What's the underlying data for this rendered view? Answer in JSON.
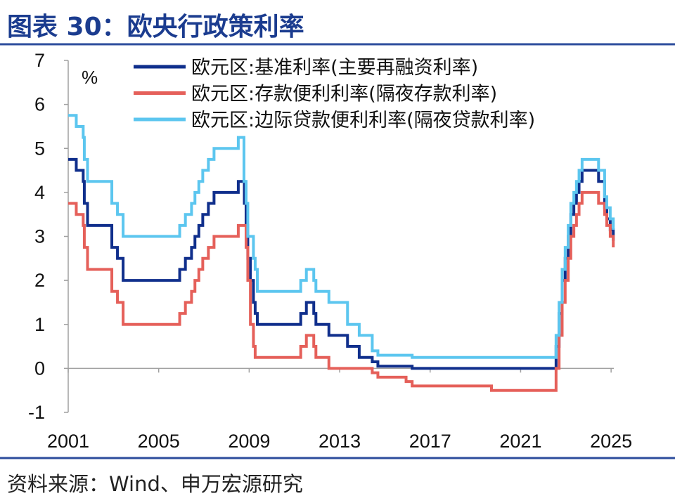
{
  "chart_data": {
    "type": "line",
    "step": true,
    "title": "图表 30：欧央行政策利率",
    "xlabel": "",
    "ylabel": "%",
    "ylim": [
      -1,
      7
    ],
    "y_ticks": [
      -1,
      0,
      1,
      2,
      3,
      4,
      5,
      6,
      7
    ],
    "xlim": [
      "2001-01-01",
      "2025-02-14"
    ],
    "x_ticks": [
      "2001",
      "2005",
      "2009",
      "2013",
      "2017",
      "2021",
      "2025"
    ],
    "grid": false,
    "legend_position": "top",
    "series": [
      {
        "name": "欧元区:基准利率(主要再融资利率)",
        "color": "#102f8c",
        "points": [
          [
            "2001-01-01",
            4.75
          ],
          [
            "2001-05-11",
            4.5
          ],
          [
            "2001-08-31",
            4.25
          ],
          [
            "2001-09-18",
            3.75
          ],
          [
            "2001-11-09",
            3.25
          ],
          [
            "2002-12-06",
            2.75
          ],
          [
            "2003-03-07",
            2.5
          ],
          [
            "2003-06-06",
            2.0
          ],
          [
            "2005-12-06",
            2.25
          ],
          [
            "2006-03-08",
            2.5
          ],
          [
            "2006-06-15",
            2.75
          ],
          [
            "2006-08-09",
            3.0
          ],
          [
            "2006-10-11",
            3.25
          ],
          [
            "2006-12-13",
            3.5
          ],
          [
            "2007-03-14",
            3.75
          ],
          [
            "2007-06-13",
            4.0
          ],
          [
            "2008-07-09",
            4.25
          ],
          [
            "2008-10-15",
            3.75
          ],
          [
            "2008-11-12",
            3.25
          ],
          [
            "2008-12-10",
            2.5
          ],
          [
            "2009-01-21",
            2.0
          ],
          [
            "2009-03-11",
            1.5
          ],
          [
            "2009-04-08",
            1.25
          ],
          [
            "2009-05-13",
            1.0
          ],
          [
            "2011-04-13",
            1.25
          ],
          [
            "2011-07-13",
            1.5
          ],
          [
            "2011-11-09",
            1.25
          ],
          [
            "2011-12-14",
            1.0
          ],
          [
            "2012-07-11",
            0.75
          ],
          [
            "2013-05-08",
            0.5
          ],
          [
            "2013-11-13",
            0.25
          ],
          [
            "2014-06-11",
            0.15
          ],
          [
            "2014-09-10",
            0.05
          ],
          [
            "2016-03-16",
            0.0
          ],
          [
            "2022-07-27",
            0.5
          ],
          [
            "2022-09-14",
            1.25
          ],
          [
            "2022-11-02",
            2.0
          ],
          [
            "2022-12-21",
            2.5
          ],
          [
            "2023-02-08",
            3.0
          ],
          [
            "2023-03-22",
            3.5
          ],
          [
            "2023-05-10",
            3.75
          ],
          [
            "2023-06-21",
            4.0
          ],
          [
            "2023-08-02",
            4.25
          ],
          [
            "2023-09-20",
            4.5
          ],
          [
            "2024-06-12",
            4.25
          ],
          [
            "2024-09-18",
            3.65
          ],
          [
            "2024-10-23",
            3.4
          ],
          [
            "2024-12-18",
            3.15
          ],
          [
            "2025-02-05",
            2.9
          ]
        ]
      },
      {
        "name": "欧元区:存款便利利率(隔夜存款利率)",
        "color": "#e5605a",
        "points": [
          [
            "2001-01-01",
            3.75
          ],
          [
            "2001-05-11",
            3.5
          ],
          [
            "2001-08-31",
            3.25
          ],
          [
            "2001-09-18",
            2.75
          ],
          [
            "2001-11-09",
            2.25
          ],
          [
            "2002-12-06",
            1.75
          ],
          [
            "2003-03-07",
            1.5
          ],
          [
            "2003-06-06",
            1.0
          ],
          [
            "2005-12-06",
            1.25
          ],
          [
            "2006-03-08",
            1.5
          ],
          [
            "2006-06-15",
            1.75
          ],
          [
            "2006-08-09",
            2.0
          ],
          [
            "2006-10-11",
            2.25
          ],
          [
            "2006-12-13",
            2.5
          ],
          [
            "2007-03-14",
            2.75
          ],
          [
            "2007-06-13",
            3.0
          ],
          [
            "2008-07-09",
            3.25
          ],
          [
            "2008-11-12",
            2.75
          ],
          [
            "2008-12-10",
            2.0
          ],
          [
            "2009-01-21",
            1.0
          ],
          [
            "2009-03-11",
            0.5
          ],
          [
            "2009-04-08",
            0.25
          ],
          [
            "2011-04-13",
            0.5
          ],
          [
            "2011-07-13",
            0.75
          ],
          [
            "2011-11-09",
            0.5
          ],
          [
            "2011-12-14",
            0.25
          ],
          [
            "2012-07-11",
            0.0
          ],
          [
            "2014-06-11",
            -0.1
          ],
          [
            "2014-09-10",
            -0.2
          ],
          [
            "2015-12-09",
            -0.3
          ],
          [
            "2016-03-16",
            -0.4
          ],
          [
            "2019-09-18",
            -0.5
          ],
          [
            "2022-07-27",
            0.0
          ],
          [
            "2022-09-14",
            0.75
          ],
          [
            "2022-11-02",
            1.5
          ],
          [
            "2022-12-21",
            2.0
          ],
          [
            "2023-02-08",
            2.5
          ],
          [
            "2023-03-22",
            3.0
          ],
          [
            "2023-05-10",
            3.25
          ],
          [
            "2023-06-21",
            3.5
          ],
          [
            "2023-08-02",
            3.75
          ],
          [
            "2023-09-20",
            4.0
          ],
          [
            "2024-06-12",
            3.75
          ],
          [
            "2024-09-18",
            3.5
          ],
          [
            "2024-10-23",
            3.25
          ],
          [
            "2024-12-18",
            3.0
          ],
          [
            "2025-02-05",
            2.75
          ]
        ]
      },
      {
        "name": "欧元区:边际贷款便利利率(隔夜贷款利率)",
        "color": "#5cc6ef",
        "points": [
          [
            "2001-01-01",
            5.75
          ],
          [
            "2001-05-11",
            5.5
          ],
          [
            "2001-08-31",
            5.25
          ],
          [
            "2001-09-18",
            4.75
          ],
          [
            "2001-11-09",
            4.25
          ],
          [
            "2002-12-06",
            3.75
          ],
          [
            "2003-03-07",
            3.5
          ],
          [
            "2003-06-06",
            3.0
          ],
          [
            "2005-12-06",
            3.25
          ],
          [
            "2006-03-08",
            3.5
          ],
          [
            "2006-06-15",
            3.75
          ],
          [
            "2006-08-09",
            4.0
          ],
          [
            "2006-10-11",
            4.25
          ],
          [
            "2006-12-13",
            4.5
          ],
          [
            "2007-03-14",
            4.75
          ],
          [
            "2007-06-13",
            5.0
          ],
          [
            "2008-07-09",
            5.25
          ],
          [
            "2008-10-09",
            4.25
          ],
          [
            "2008-11-12",
            3.75
          ],
          [
            "2008-12-10",
            3.0
          ],
          [
            "2009-03-11",
            2.5
          ],
          [
            "2009-04-08",
            2.25
          ],
          [
            "2009-05-13",
            1.75
          ],
          [
            "2011-04-13",
            2.0
          ],
          [
            "2011-07-13",
            2.25
          ],
          [
            "2011-11-09",
            2.0
          ],
          [
            "2011-12-14",
            1.75
          ],
          [
            "2012-07-11",
            1.5
          ],
          [
            "2013-05-08",
            1.0
          ],
          [
            "2013-11-13",
            0.75
          ],
          [
            "2014-06-11",
            0.4
          ],
          [
            "2014-09-10",
            0.3
          ],
          [
            "2016-03-16",
            0.25
          ],
          [
            "2022-07-27",
            0.75
          ],
          [
            "2022-09-14",
            1.5
          ],
          [
            "2022-11-02",
            2.25
          ],
          [
            "2022-12-21",
            2.75
          ],
          [
            "2023-02-08",
            3.25
          ],
          [
            "2023-03-22",
            3.75
          ],
          [
            "2023-05-10",
            4.0
          ],
          [
            "2023-06-21",
            4.25
          ],
          [
            "2023-08-02",
            4.5
          ],
          [
            "2023-09-20",
            4.75
          ],
          [
            "2024-06-12",
            4.5
          ],
          [
            "2024-09-18",
            3.9
          ],
          [
            "2024-10-23",
            3.65
          ],
          [
            "2024-12-18",
            3.4
          ],
          [
            "2025-02-05",
            3.15
          ]
        ]
      }
    ]
  },
  "source": "资料来源：Wind、申万宏源研究"
}
